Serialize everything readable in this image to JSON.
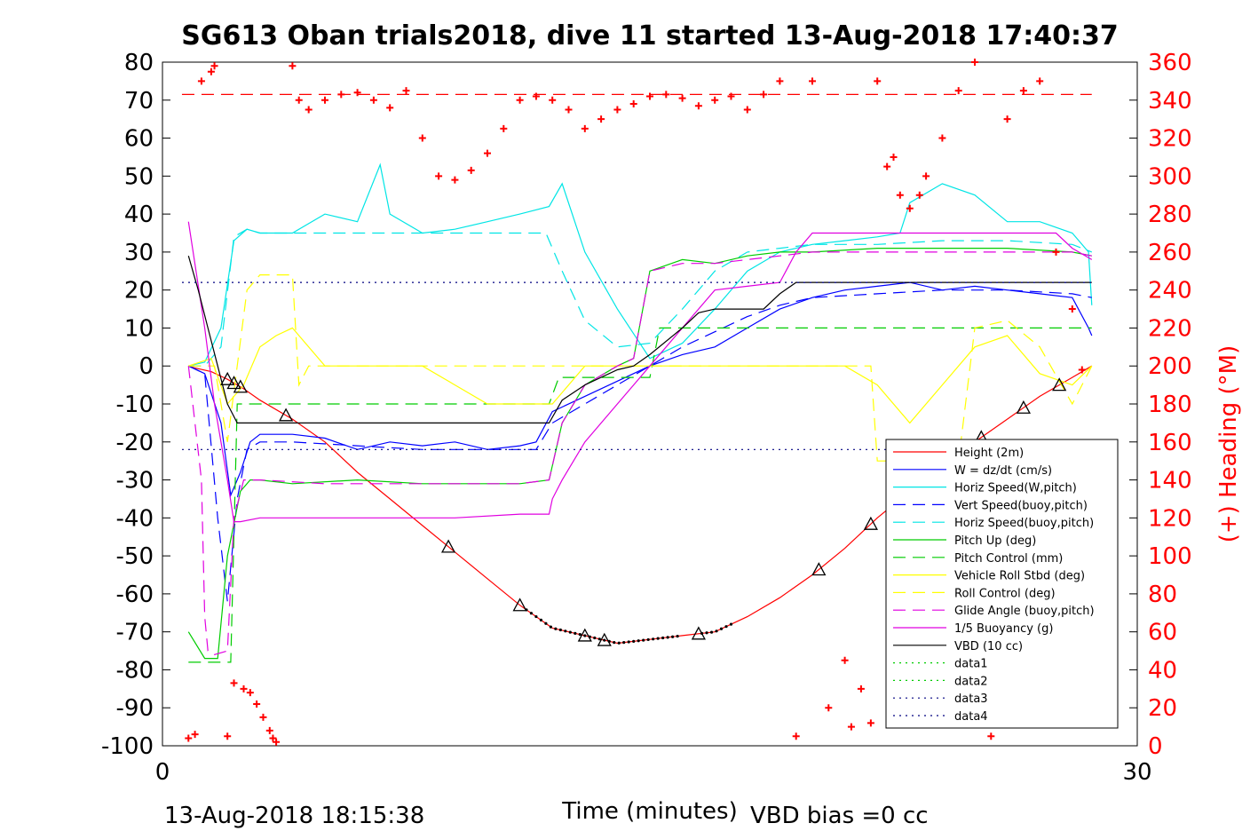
{
  "chart_data": {
    "type": "line",
    "title": "SG613 Oban trials2018, dive 11 started 13-Aug-2018 17:40:37",
    "xlabel": "Time (minutes)",
    "ylabel_right": "(+) Heading (°M)",
    "xlim": [
      0,
      30
    ],
    "ylim": [
      -100,
      80
    ],
    "ylim_right": [
      0,
      360
    ],
    "x_ticks": [
      "0",
      "30"
    ],
    "y_ticks": [
      "80",
      "70",
      "60",
      "50",
      "40",
      "30",
      "20",
      "10",
      "0",
      "-10",
      "-20",
      "-30",
      "-40",
      "-50",
      "-60",
      "-70",
      "-80",
      "-90",
      "-100"
    ],
    "y_ticks_right": [
      "360",
      "340",
      "320",
      "300",
      "280",
      "260",
      "240",
      "220",
      "200",
      "180",
      "160",
      "140",
      "120",
      "100",
      "80",
      "60",
      "40",
      "20",
      "0"
    ],
    "footer_left": "13-Aug-2018 18:15:38",
    "footer_right": "VBD bias =0 cc",
    "legend_position": "lower-right",
    "series": [
      {
        "name": "Height (2m)",
        "color": "#ff0000",
        "style": "solid",
        "x": [
          0.8,
          1.0,
          1.5,
          2.0,
          2.5,
          3.0,
          4.0,
          5.0,
          6.0,
          7.0,
          8.0,
          9.0,
          10.0,
          11.0,
          12.0,
          13.0,
          14.0,
          15.0,
          16.0,
          17.0,
          18.0,
          19.0,
          20.0,
          21.0,
          22.0,
          23.0,
          24.0,
          25.0,
          26.0,
          27.0,
          28.0,
          28.6
        ],
        "y": [
          0,
          -0.5,
          -1.5,
          -3.5,
          -6,
          -9,
          -14,
          -20,
          -28,
          -35,
          -42,
          -49,
          -56,
          -63,
          -69,
          -71,
          -73,
          -72,
          -71,
          -70,
          -66,
          -61,
          -55,
          -48,
          -40,
          -33,
          -26,
          -20,
          -14,
          -8,
          -3,
          0
        ]
      },
      {
        "name": "W = dz/dt (cm/s)",
        "color": "#0000ff",
        "style": "solid",
        "x": [
          0.8,
          1.3,
          1.8,
          2.1,
          2.4,
          2.7,
          3.0,
          4.0,
          5.0,
          6.0,
          7.0,
          8.0,
          9.0,
          10.0,
          11.0,
          11.5,
          12.0,
          13.0,
          14.0,
          15.0,
          16.0,
          17.0,
          18.0,
          19.0,
          20.0,
          21.0,
          22.0,
          23.0,
          24.0,
          25.0,
          26.0,
          27.0,
          28.0,
          28.5,
          28.6
        ],
        "y": [
          0,
          -2,
          -15,
          -34,
          -28,
          -20,
          -18,
          -18,
          -19,
          -22,
          -20,
          -21,
          -20,
          -22,
          -21,
          -20,
          -12,
          -8,
          -4,
          0,
          3,
          5,
          10,
          15,
          18,
          20,
          21,
          22,
          20,
          21,
          20,
          19,
          18,
          10,
          8
        ]
      },
      {
        "name": "Horiz Speed(W,pitch)",
        "color": "#00e5e5",
        "style": "solid",
        "x": [
          0.8,
          1.3,
          1.8,
          2.2,
          2.6,
          3.0,
          4.0,
          5.0,
          6.0,
          6.7,
          7.0,
          8.0,
          9.0,
          10.0,
          11.0,
          11.9,
          12.3,
          13.0,
          14.0,
          15.0,
          16.0,
          17.0,
          18.0,
          19.0,
          20.0,
          21.0,
          22.0,
          22.7,
          23.0,
          24.0,
          25.0,
          26.0,
          27.0,
          28.0,
          28.5,
          28.6
        ],
        "y": [
          0,
          1,
          10,
          33,
          36,
          35,
          35,
          40,
          38,
          53,
          40,
          35,
          36,
          38,
          40,
          42,
          48,
          30,
          15,
          2,
          6,
          15,
          25,
          30,
          32,
          33,
          34,
          35,
          43,
          48,
          45,
          38,
          38,
          35,
          30,
          16
        ]
      },
      {
        "name": "Vert Speed(buoy,pitch)",
        "color": "#0000ff",
        "style": "dashed",
        "x": [
          0.8,
          1.3,
          1.7,
          2.0,
          2.3,
          2.6,
          3.0,
          4.0,
          6.0,
          8.0,
          10.0,
          11.5,
          12.0,
          13.0,
          14.0,
          15.0,
          16.0,
          17.0,
          18.0,
          19.0,
          20.0,
          22.0,
          24.0,
          26.0,
          28.0,
          28.6
        ],
        "y": [
          0,
          -2,
          -40,
          -62,
          -35,
          -22,
          -20,
          -20,
          -21,
          -22,
          -22,
          -22,
          -15,
          -10,
          -5,
          0,
          5,
          9,
          13,
          16,
          18,
          19,
          20,
          20,
          19,
          18
        ]
      },
      {
        "name": "Horiz Speed(buoy,pitch)",
        "color": "#00e5e5",
        "style": "dashed",
        "x": [
          0.8,
          1.3,
          1.8,
          2.2,
          2.6,
          3.0,
          5.0,
          7.0,
          9.0,
          11.0,
          11.8,
          12.3,
          13.0,
          14.0,
          15.0,
          16.0,
          17.0,
          18.0,
          19.0,
          20.0,
          22.0,
          24.0,
          26.0,
          28.0,
          28.6
        ],
        "y": [
          0,
          0,
          5,
          34,
          36,
          35,
          35,
          35,
          35,
          35,
          35,
          25,
          12,
          5,
          6,
          15,
          25,
          30,
          31,
          32,
          32,
          33,
          33,
          32,
          30
        ]
      },
      {
        "name": "Pitch Up (deg)",
        "color": "#00cc00",
        "style": "solid",
        "x": [
          0.8,
          1.3,
          1.7,
          2.0,
          2.4,
          2.7,
          3.0,
          4.0,
          6.0,
          8.0,
          10.0,
          11.0,
          11.9,
          12.3,
          13.0,
          14.0,
          14.5,
          15.0,
          16.0,
          17.0,
          18.0,
          19.0,
          20.0,
          22.0,
          24.0,
          26.0,
          28.0,
          28.6
        ],
        "y": [
          -70,
          -77,
          -77,
          -50,
          -33,
          -30,
          -30,
          -31,
          -30,
          -31,
          -31,
          -31,
          -30,
          -15,
          -5,
          0,
          2,
          25,
          28,
          27,
          29,
          30,
          30,
          31,
          31,
          31,
          30,
          29
        ]
      },
      {
        "name": "Pitch Control (mm)",
        "color": "#00cc00",
        "style": "dashed",
        "x": [
          0.8,
          1.5,
          2.1,
          2.3,
          3.0,
          5.0,
          8.0,
          11.0,
          11.9,
          12.2,
          13.0,
          14.5,
          15.0,
          15.3,
          17.0,
          20.0,
          23.0,
          26.0,
          28.0,
          28.6
        ],
        "y": [
          -78,
          -78,
          -78,
          -10,
          -10,
          -10,
          -10,
          -10,
          -10,
          -3,
          -3,
          -3,
          -3,
          10,
          10,
          10,
          10,
          10,
          10,
          10
        ]
      },
      {
        "name": "Vehicle Roll Stbd (deg)",
        "color": "#ffff00",
        "style": "solid",
        "x": [
          0.8,
          1.5,
          2.0,
          2.5,
          3.0,
          3.5,
          4.0,
          5.0,
          6.0,
          7.0,
          8.0,
          9.0,
          10.0,
          11.0,
          12.0,
          13.0,
          14.0,
          15.0,
          16.0,
          17.0,
          18.0,
          19.0,
          20.0,
          21.0,
          22.0,
          23.0,
          24.0,
          25.0,
          26.0,
          27.0,
          28.0,
          28.6
        ],
        "y": [
          0,
          2,
          -10,
          -5,
          5,
          8,
          10,
          0,
          0,
          0,
          0,
          -5,
          -10,
          -10,
          -10,
          0,
          0,
          0,
          0,
          0,
          0,
          0,
          0,
          0,
          -5,
          -15,
          -5,
          5,
          8,
          -2,
          -5,
          0
        ]
      },
      {
        "name": "Roll Control (deg)",
        "color": "#ffff00",
        "style": "dashed",
        "x": [
          0.8,
          1.6,
          2.0,
          2.3,
          2.6,
          3.0,
          3.5,
          4.0,
          4.2,
          4.5,
          5.0,
          8.0,
          11.0,
          12.0,
          15.0,
          18.0,
          20.0,
          21.8,
          22.0,
          23.0,
          24.5,
          25.0,
          26.0,
          27.0,
          28.0,
          28.6
        ],
        "y": [
          0,
          0,
          -20,
          0,
          20,
          24,
          24,
          24,
          -5,
          0,
          0,
          0,
          0,
          0,
          0,
          0,
          0,
          0,
          -25,
          -25,
          -25,
          10,
          12,
          5,
          -10,
          0
        ]
      },
      {
        "name": "Glide Angle (buoy,pitch)",
        "color": "#e000e0",
        "style": "dashed",
        "x": [
          0.8,
          1.2,
          1.3,
          1.4,
          1.6,
          2.0,
          2.2,
          2.5,
          3.0,
          5.0,
          8.0,
          10.0,
          11.0,
          11.9,
          12.3,
          13.0,
          14.0,
          14.5,
          15.0,
          16.0,
          17.0,
          18.0,
          19.0,
          20.0,
          22.0,
          24.0,
          26.0,
          28.0,
          28.6
        ],
        "y": [
          0,
          -30,
          -66,
          -75,
          -76,
          -75,
          -40,
          -30,
          -30,
          -31,
          -31,
          -31,
          -31,
          -30,
          -15,
          -5,
          0,
          2,
          25,
          27,
          27,
          28,
          29,
          30,
          30,
          30,
          30,
          30,
          29
        ]
      },
      {
        "name": "1/5 Buoyancy (g)",
        "color": "#e000e0",
        "style": "solid",
        "x": [
          0.8,
          1.3,
          1.6,
          2.0,
          2.2,
          2.4,
          3.0,
          5.0,
          7.0,
          9.0,
          11.0,
          11.9,
          12.0,
          12.3,
          13.0,
          14.0,
          14.5,
          15.0,
          16.0,
          17.0,
          18.0,
          19.0,
          19.5,
          20.0,
          22.0,
          24.0,
          26.0,
          27.5,
          28.0,
          28.6
        ],
        "y": [
          38,
          10,
          -10,
          -30,
          -41,
          -41,
          -40,
          -40,
          -40,
          -40,
          -39,
          -39,
          -35,
          -30,
          -20,
          -10,
          -5,
          0,
          10,
          20,
          21,
          22,
          30,
          35,
          35,
          35,
          35,
          35,
          31,
          28
        ]
      },
      {
        "name": "VBD (10 cc)",
        "color": "#000000",
        "style": "solid",
        "x": [
          0.8,
          1.1,
          1.4,
          1.7,
          2.0,
          2.3,
          2.6,
          3.0,
          5.0,
          8.0,
          11.0,
          11.9,
          12.3,
          13.0,
          14.0,
          14.5,
          15.0,
          16.0,
          16.5,
          17.0,
          18.0,
          18.5,
          19.0,
          19.5,
          20.0,
          21.0,
          24.0,
          27.0,
          28.6
        ],
        "y": [
          29,
          20,
          10,
          0,
          -10,
          -15,
          -15,
          -15,
          -15,
          -15,
          -15,
          -15,
          -9,
          -5,
          -1,
          0,
          3,
          10,
          14,
          15,
          15,
          15,
          19,
          22,
          22,
          22,
          22,
          22,
          22
        ]
      },
      {
        "name": "data1",
        "color": "#00cc00",
        "style": "dotted",
        "x": [],
        "y": []
      },
      {
        "name": "data2",
        "color": "#00cc00",
        "style": "dotted",
        "x": [],
        "y": []
      },
      {
        "name": "data3",
        "color": "#000080",
        "style": "dotted",
        "x": [
          0.6,
          28.6
        ],
        "y": [
          22,
          22
        ]
      },
      {
        "name": "data4",
        "color": "#000080",
        "style": "dotted",
        "x": [
          0.6,
          28.6
        ],
        "y": [
          -22,
          -22
        ]
      }
    ],
    "heading_reference_deg": 343,
    "heading_points": {
      "x": [
        0.8,
        1.0,
        1.2,
        1.5,
        1.6,
        2.0,
        2.2,
        2.5,
        2.7,
        2.9,
        3.1,
        3.3,
        3.4,
        3.5,
        4.0,
        4.2,
        4.5,
        5.0,
        5.5,
        6.0,
        6.5,
        7.0,
        7.5,
        8.0,
        8.5,
        9.0,
        9.5,
        10.0,
        10.5,
        11.0,
        11.5,
        12.0,
        12.5,
        13.0,
        13.5,
        14.0,
        14.5,
        15.0,
        15.5,
        16.0,
        16.5,
        17.0,
        17.5,
        18.0,
        18.5,
        19.0,
        19.5,
        20.0,
        20.5,
        21.0,
        21.2,
        21.5,
        21.8,
        22.0,
        22.3,
        22.5,
        22.7,
        23.0,
        23.3,
        23.5,
        24.0,
        24.5,
        25.0,
        25.5,
        26.0,
        26.5,
        27.0,
        27.5,
        28.0,
        28.3
      ],
      "y": [
        4,
        6,
        350,
        355,
        358,
        5,
        33,
        30,
        28,
        22,
        15,
        8,
        4,
        2,
        358,
        340,
        335,
        340,
        343,
        344,
        340,
        336,
        345,
        320,
        300,
        298,
        303,
        312,
        325,
        340,
        342,
        340,
        335,
        325,
        330,
        335,
        338,
        342,
        343,
        341,
        337,
        340,
        342,
        335,
        343,
        350,
        5,
        350,
        20,
        45,
        10,
        30,
        12,
        350,
        305,
        310,
        290,
        283,
        290,
        300,
        320,
        345,
        360,
        5,
        330,
        345,
        350,
        260,
        230,
        198
      ]
    }
  }
}
